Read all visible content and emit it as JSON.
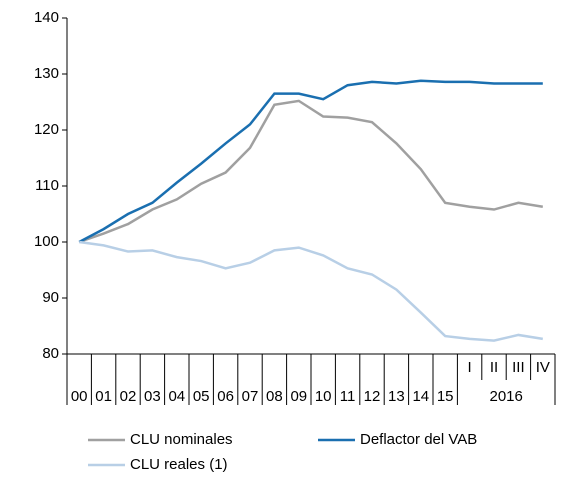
{
  "chart_data": {
    "type": "line",
    "categories": [
      "00",
      "01",
      "02",
      "03",
      "04",
      "05",
      "06",
      "07",
      "08",
      "09",
      "10",
      "11",
      "12",
      "13",
      "14",
      "15",
      "I",
      "II",
      "III",
      "IV"
    ],
    "category_groups": [
      {
        "label": "2016",
        "categories": [
          "I",
          "II",
          "III",
          "IV"
        ]
      }
    ],
    "series": [
      {
        "name": "CLU nominales",
        "color": "#a0a0a0",
        "values": [
          100,
          101.5,
          103.2,
          105.8,
          107.6,
          110.4,
          112.4,
          116.8,
          124.5,
          125.2,
          122.4,
          122.2,
          121.4,
          117.6,
          113,
          107,
          106.3,
          105.8,
          107,
          106.3
        ]
      },
      {
        "name": "Deflactor del VAB",
        "color": "#1a6fb0",
        "values": [
          100,
          102.3,
          105,
          107,
          110.6,
          114,
          117.6,
          121,
          126.5,
          126.5,
          125.5,
          128,
          128.6,
          128.3,
          128.8,
          128.6,
          128.6,
          128.3,
          128.3,
          128.3
        ]
      },
      {
        "name": "CLU reales (1)",
        "color": "#b8cfe6",
        "values": [
          100,
          99.4,
          98.3,
          98.5,
          97.3,
          96.6,
          95.3,
          96.3,
          98.5,
          99,
          97.6,
          95.3,
          94.2,
          91.5,
          87.4,
          83.2,
          82.7,
          82.4,
          83.4,
          82.7
        ]
      }
    ],
    "ylim": [
      80,
      140
    ],
    "yticks": [
      80,
      90,
      100,
      110,
      120,
      130,
      140
    ]
  }
}
